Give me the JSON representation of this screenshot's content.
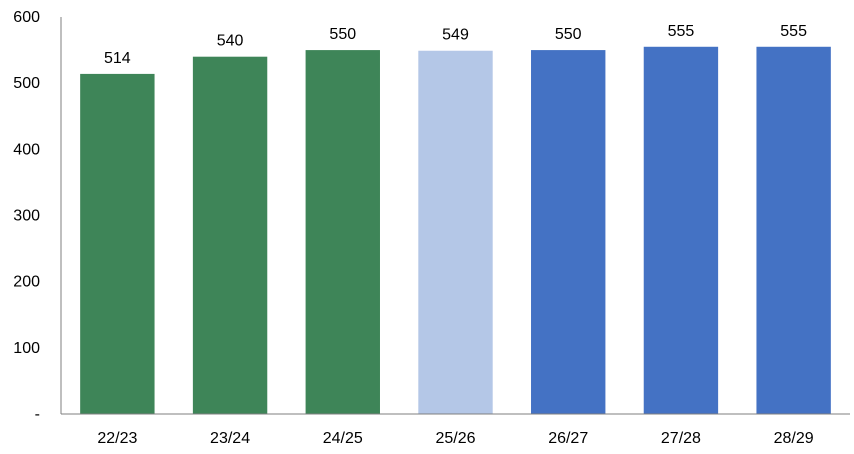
{
  "chart_data": {
    "type": "bar",
    "title": "",
    "xlabel": "",
    "ylabel": "",
    "ylim": [
      0,
      600
    ],
    "yticks": [
      0,
      100,
      200,
      300,
      400,
      500,
      600
    ],
    "ytick_labels": [
      "-",
      "100",
      "200",
      "300",
      "400",
      "500",
      "600"
    ],
    "grid": false,
    "legend": "none",
    "categories": [
      "22/23",
      "23/24",
      "24/25",
      "25/26",
      "26/27",
      "27/28",
      "28/29"
    ],
    "values": [
      514,
      540,
      550,
      549,
      550,
      555,
      555
    ],
    "value_labels": [
      "514",
      "540",
      "550",
      "549",
      "550",
      "555",
      "555"
    ],
    "bar_colors": [
      "#3e8558",
      "#3e8558",
      "#3e8558",
      "#b4c7e7",
      "#4472c4",
      "#4472c4",
      "#4472c4"
    ]
  }
}
